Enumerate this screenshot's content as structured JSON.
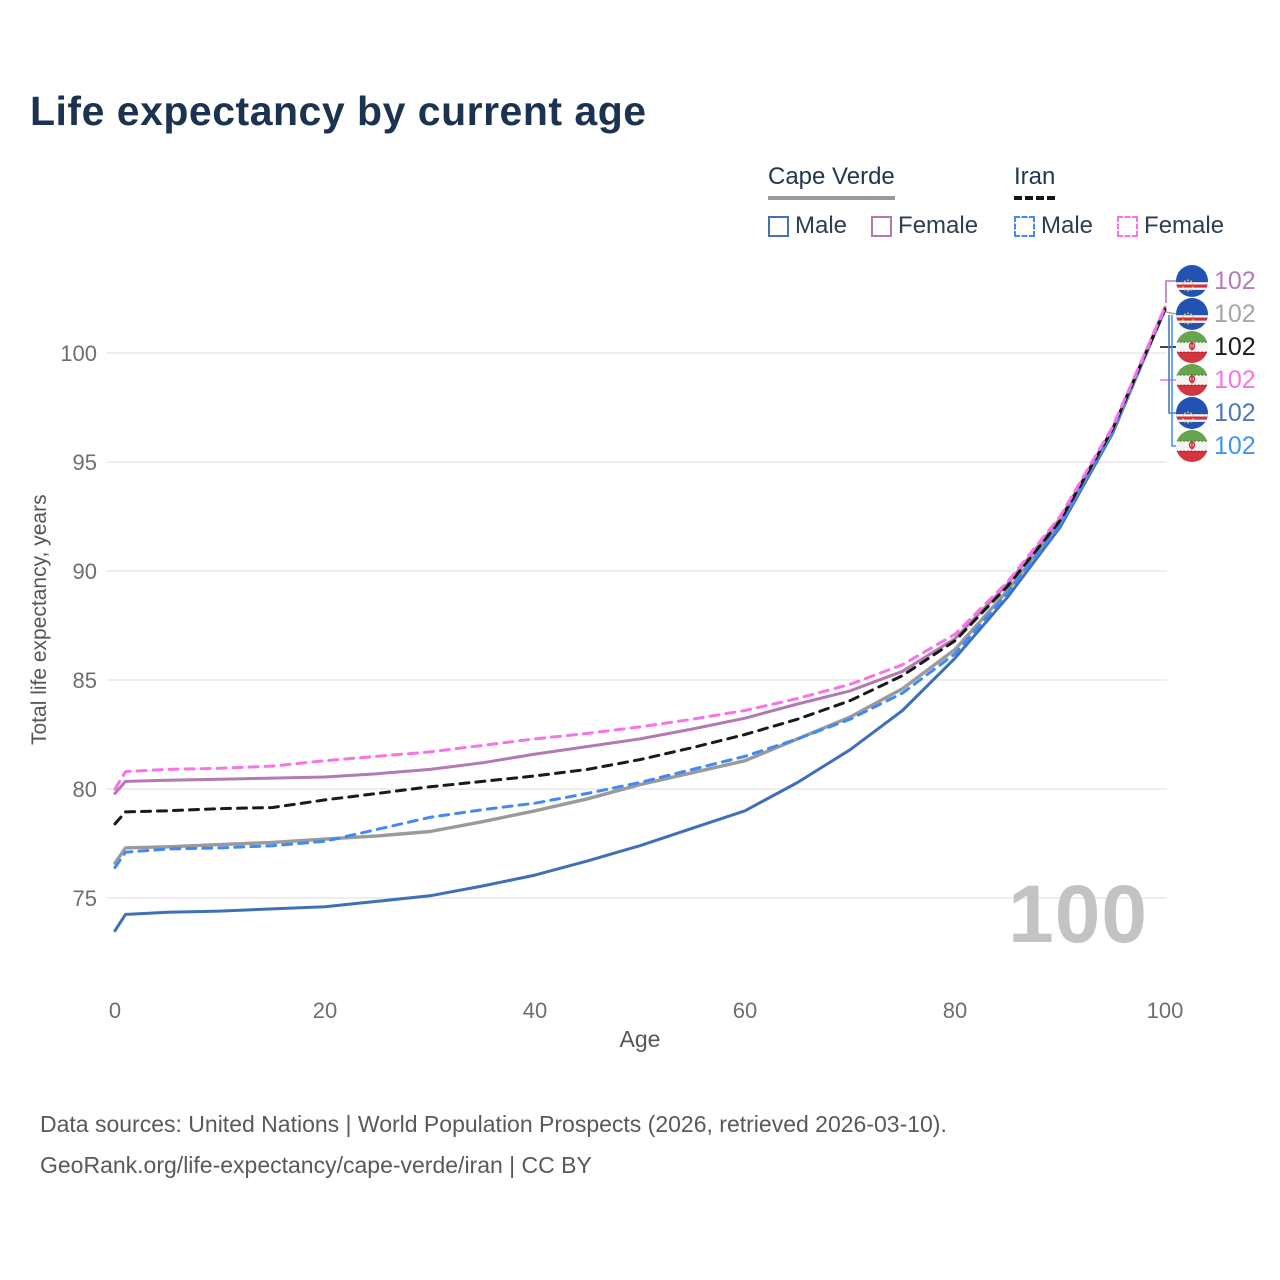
{
  "title": "Life expectancy by current age",
  "legend": {
    "groups": [
      {
        "label": "Cape Verde",
        "line_style": "solid",
        "line_color": "#9a9a9a",
        "items": [
          {
            "label": "Male",
            "color": "#4472b0"
          },
          {
            "label": "Female",
            "color": "#b279b2"
          }
        ]
      },
      {
        "label": "Iran",
        "line_style": "dashed",
        "line_color": "#141414",
        "items": [
          {
            "label": "Male",
            "color": "#4189f5"
          },
          {
            "label": "Female",
            "color": "#f973e8"
          }
        ]
      }
    ]
  },
  "watermark": "100",
  "footer": {
    "line1": "Data sources: United Nations | World Population Prospects (2026, retrieved 2026-03-10).",
    "line2": "GeoRank.org/life-expectancy/cape-verde/iran | CC BY"
  },
  "callouts": [
    {
      "flag": "cape-verde",
      "series": "Cape Verde Female",
      "value": "102",
      "color": "#b57bb5"
    },
    {
      "flag": "cape-verde",
      "series": "Cape Verde",
      "value": "102",
      "color": "#a6a6a6"
    },
    {
      "flag": "iran",
      "series": "Iran",
      "value": "102",
      "color": "#1a1a1a"
    },
    {
      "flag": "iran",
      "series": "Iran Female",
      "value": "102",
      "color": "#f973e8"
    },
    {
      "flag": "cape-verde",
      "series": "Cape Verde Male",
      "value": "102",
      "color": "#4a79bc"
    },
    {
      "flag": "iran",
      "series": "Iran Male",
      "value": "102",
      "color": "#4193f6"
    }
  ],
  "chart_data": {
    "type": "line",
    "title": "Life expectancy by current age",
    "xlabel": "Age",
    "ylabel": "Total life expectancy, years",
    "xlim": [
      0,
      100
    ],
    "ylim": [
      73,
      103
    ],
    "xticks": [
      0,
      20,
      40,
      60,
      80,
      100
    ],
    "yticks": [
      75,
      80,
      85,
      90,
      95,
      100
    ],
    "grid": "horizontal",
    "legend_position": "top-right",
    "ages": [
      0,
      1,
      5,
      10,
      15,
      20,
      25,
      30,
      35,
      40,
      45,
      50,
      55,
      60,
      65,
      70,
      75,
      80,
      85,
      90,
      95,
      100
    ],
    "series": [
      {
        "name": "Cape Verde Male",
        "country": "Cape Verde",
        "sex": "male",
        "color": "#3e6fb7",
        "dash": false,
        "values": [
          73.5,
          74.25,
          74.35,
          74.4,
          74.5,
          74.6,
          74.85,
          75.1,
          75.55,
          76.05,
          76.7,
          77.4,
          78.2,
          79.0,
          80.3,
          81.8,
          83.6,
          86.0,
          88.8,
          92.0,
          96.3,
          102.0
        ]
      },
      {
        "name": "Cape Verde",
        "country": "Cape Verde",
        "sex": "both",
        "color": "#9a9a9a",
        "dash": false,
        "values": [
          76.6,
          77.3,
          77.35,
          77.45,
          77.55,
          77.7,
          77.85,
          78.05,
          78.5,
          79.0,
          79.55,
          80.2,
          80.75,
          81.3,
          82.3,
          83.3,
          84.6,
          86.4,
          89.1,
          92.2,
          96.4,
          102.0
        ]
      },
      {
        "name": "Cape Verde Female",
        "country": "Cape Verde",
        "sex": "female",
        "color": "#b279b2",
        "dash": false,
        "values": [
          79.8,
          80.35,
          80.4,
          80.45,
          80.5,
          80.55,
          80.7,
          80.9,
          81.2,
          81.6,
          81.95,
          82.3,
          82.75,
          83.25,
          83.9,
          84.5,
          85.4,
          86.9,
          89.4,
          92.4,
          96.5,
          102.1
        ]
      },
      {
        "name": "Iran Male",
        "country": "Iran",
        "sex": "male",
        "color": "#4189f5",
        "dash": true,
        "values": [
          76.4,
          77.1,
          77.25,
          77.3,
          77.4,
          77.6,
          78.15,
          78.7,
          79.05,
          79.35,
          79.8,
          80.3,
          80.9,
          81.5,
          82.3,
          83.2,
          84.4,
          86.2,
          89.0,
          92.1,
          96.4,
          102.0
        ]
      },
      {
        "name": "Iran",
        "country": "Iran",
        "sex": "both",
        "color": "#1a1a1a",
        "dash": true,
        "values": [
          78.4,
          78.95,
          79.0,
          79.1,
          79.15,
          79.5,
          79.8,
          80.1,
          80.35,
          80.6,
          80.9,
          81.35,
          81.9,
          82.5,
          83.2,
          84.05,
          85.2,
          86.8,
          89.3,
          92.3,
          96.5,
          102.0
        ]
      },
      {
        "name": "Iran Female",
        "country": "Iran",
        "sex": "female",
        "color": "#f973e8",
        "dash": true,
        "values": [
          80.0,
          80.8,
          80.9,
          80.95,
          81.05,
          81.3,
          81.5,
          81.7,
          82.0,
          82.3,
          82.55,
          82.85,
          83.2,
          83.6,
          84.15,
          84.8,
          85.7,
          87.1,
          89.5,
          92.5,
          96.6,
          102.1
        ]
      }
    ]
  }
}
